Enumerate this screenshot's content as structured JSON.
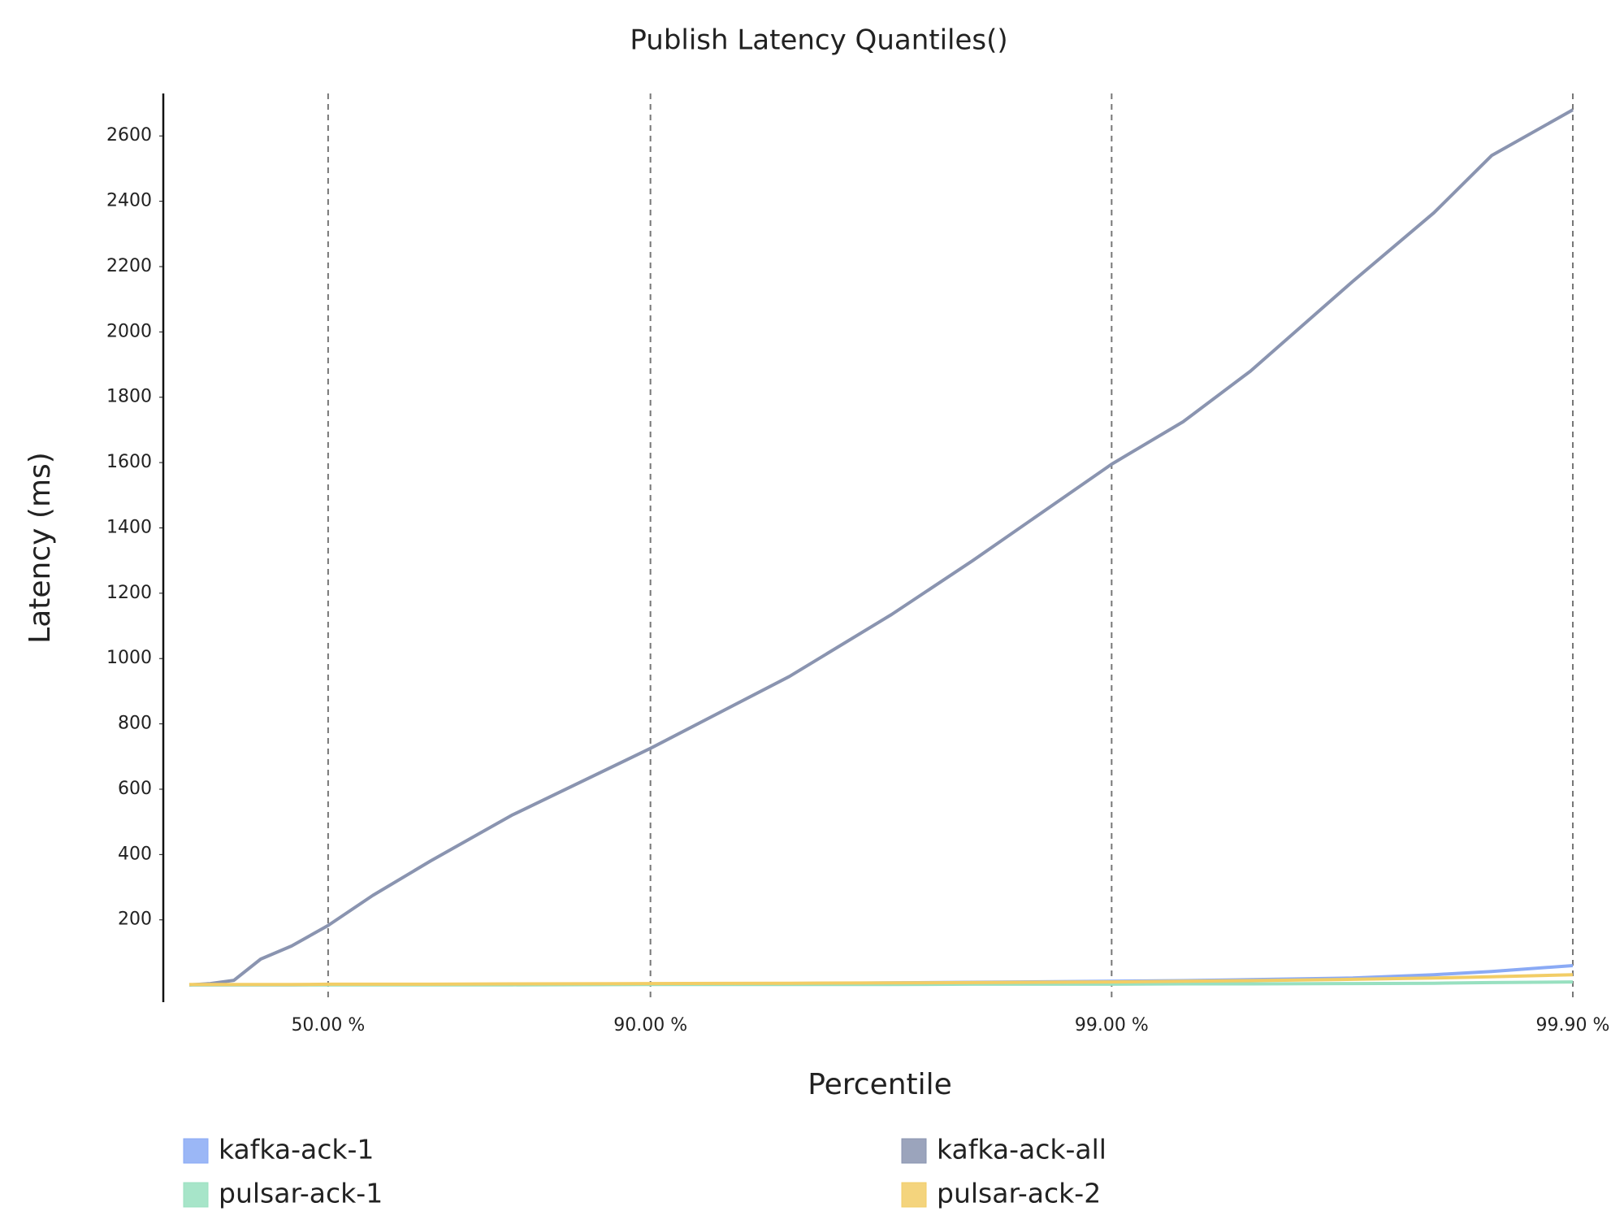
{
  "chart_data": {
    "type": "line",
    "title": "Publish Latency Quantiles()",
    "x_label": "Percentile",
    "y_label": "Latency (ms)",
    "x_scale": "percentile-log",
    "x": [
      0,
      10,
      20,
      30,
      40,
      50,
      60,
      70,
      80,
      90,
      95,
      97,
      98,
      99,
      99.3,
      99.5,
      99.7,
      99.8,
      99.85,
      99.9
    ],
    "series": [
      {
        "name": "kafka-ack-1",
        "color": "#8aaaf5",
        "values": [
          1,
          1,
          1,
          1,
          1,
          2,
          2,
          2,
          3,
          4,
          5,
          7,
          9,
          12,
          14,
          17,
          22,
          32,
          42,
          60
        ]
      },
      {
        "name": "kafka-ack-all",
        "color": "#8a94b0",
        "values": [
          1,
          5,
          15,
          80,
          120,
          183,
          275,
          380,
          520,
          725,
          945,
          1135,
          1300,
          1595,
          1725,
          1880,
          2155,
          2365,
          2540,
          2680
        ]
      },
      {
        "name": "pulsar-ack-1",
        "color": "#98e0c0",
        "values": [
          1,
          1,
          1,
          1,
          1,
          1,
          1,
          1,
          1,
          2,
          2,
          2,
          3,
          3,
          4,
          4,
          5,
          6,
          8,
          10
        ]
      },
      {
        "name": "pulsar-ack-2",
        "color": "#f2cd66",
        "values": [
          2,
          2,
          2,
          2,
          2,
          3,
          3,
          3,
          4,
          5,
          6,
          7,
          8,
          10,
          12,
          14,
          18,
          22,
          26,
          32
        ]
      }
    ],
    "xlim": [
      0,
      99.9
    ],
    "xticks": [
      {
        "value": 50,
        "label": "50.00 %"
      },
      {
        "value": 90,
        "label": "90.00 %"
      },
      {
        "value": 99,
        "label": "99.00 %"
      },
      {
        "value": 99.9,
        "label": "99.90 %"
      }
    ],
    "ylim": [
      -52,
      2730
    ],
    "yticks": [
      200,
      400,
      600,
      800,
      1000,
      1200,
      1400,
      1600,
      1800,
      2000,
      2200,
      2400,
      2600
    ],
    "grid": "x",
    "legend": "bottom"
  }
}
